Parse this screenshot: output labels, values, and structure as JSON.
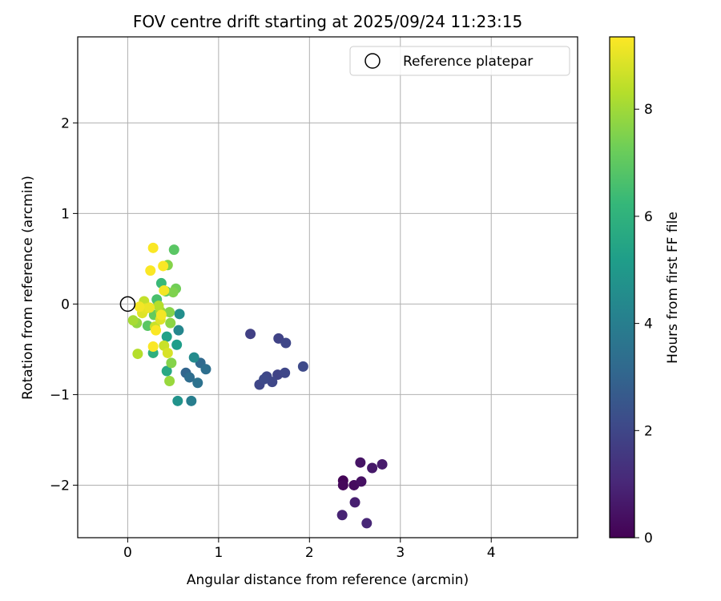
{
  "chart_data": {
    "type": "scatter",
    "title": "FOV centre drift starting at 2025/09/24 11:23:15",
    "xlabel": "Angular distance from reference (arcmin)",
    "ylabel": "Rotation from reference (arcmin)",
    "xlim": [
      -0.55,
      4.95
    ],
    "ylim": [
      -2.58,
      2.95
    ],
    "xticks": [
      "0",
      "1",
      "2",
      "3",
      "4"
    ],
    "yticks": [
      "−2",
      "−1",
      "0",
      "1",
      "2"
    ],
    "xtick_values": [
      0,
      1,
      2,
      3,
      4
    ],
    "ytick_values": [
      -2,
      -1,
      0,
      1,
      2
    ],
    "grid": true,
    "legend": {
      "label": "Reference platepar",
      "location": "top-right"
    },
    "reference_point": {
      "x": 0,
      "y": 0
    },
    "colorbar": {
      "label": "Hours from first FF file",
      "range": [
        0,
        9.35
      ],
      "ticks": [
        "0",
        "2",
        "4",
        "6",
        "8"
      ],
      "tick_values": [
        0,
        2,
        4,
        6,
        8
      ],
      "colormap": [
        "#440154",
        "#482878",
        "#3e4989",
        "#31688e",
        "#26828e",
        "#1f9e89",
        "#35b779",
        "#6ece58",
        "#b5de2b",
        "#fde725"
      ]
    },
    "points": [
      {
        "x": 2.37,
        "y": -1.95,
        "t": 0.1
      },
      {
        "x": 2.37,
        "y": -2.0,
        "t": 0.2
      },
      {
        "x": 2.49,
        "y": -2.0,
        "t": 0.3
      },
      {
        "x": 2.57,
        "y": -1.96,
        "t": 0.4
      },
      {
        "x": 2.56,
        "y": -1.75,
        "t": 0.5
      },
      {
        "x": 2.69,
        "y": -1.81,
        "t": 0.6
      },
      {
        "x": 2.8,
        "y": -1.77,
        "t": 0.7
      },
      {
        "x": 2.5,
        "y": -2.19,
        "t": 0.8
      },
      {
        "x": 2.36,
        "y": -2.33,
        "t": 0.9
      },
      {
        "x": 2.63,
        "y": -2.42,
        "t": 1.0
      },
      {
        "x": 1.35,
        "y": -0.33,
        "t": 1.8
      },
      {
        "x": 1.66,
        "y": -0.38,
        "t": 1.9
      },
      {
        "x": 1.74,
        "y": -0.43,
        "t": 2.0
      },
      {
        "x": 1.93,
        "y": -0.69,
        "t": 2.1
      },
      {
        "x": 1.73,
        "y": -0.76,
        "t": 2.0
      },
      {
        "x": 1.65,
        "y": -0.78,
        "t": 1.9
      },
      {
        "x": 1.53,
        "y": -0.8,
        "t": 2.0
      },
      {
        "x": 1.5,
        "y": -0.83,
        "t": 2.1
      },
      {
        "x": 1.59,
        "y": -0.86,
        "t": 2.0
      },
      {
        "x": 1.45,
        "y": -0.89,
        "t": 2.0
      },
      {
        "x": 0.64,
        "y": -0.76,
        "t": 3.0
      },
      {
        "x": 0.68,
        "y": -0.81,
        "t": 3.3
      },
      {
        "x": 0.77,
        "y": -0.87,
        "t": 3.5
      },
      {
        "x": 0.8,
        "y": -0.65,
        "t": 3.2
      },
      {
        "x": 0.86,
        "y": -0.72,
        "t": 3.4
      },
      {
        "x": 0.73,
        "y": -0.59,
        "t": 4.5
      },
      {
        "x": 0.7,
        "y": -1.07,
        "t": 4.0
      },
      {
        "x": 0.55,
        "y": -1.07,
        "t": 4.8
      },
      {
        "x": 0.56,
        "y": -0.29,
        "t": 4.3
      },
      {
        "x": 0.57,
        "y": -0.11,
        "t": 4.6
      },
      {
        "x": 0.54,
        "y": -0.45,
        "t": 5.2
      },
      {
        "x": 0.43,
        "y": -0.74,
        "t": 5.6
      },
      {
        "x": 0.43,
        "y": -0.36,
        "t": 5.3
      },
      {
        "x": 0.37,
        "y": 0.23,
        "t": 6.3
      },
      {
        "x": 0.28,
        "y": -0.54,
        "t": 5.9
      },
      {
        "x": 0.32,
        "y": 0.05,
        "t": 6.6
      },
      {
        "x": 0.42,
        "y": 0.14,
        "t": 6.9
      },
      {
        "x": 0.51,
        "y": 0.6,
        "t": 6.9
      },
      {
        "x": 0.44,
        "y": 0.43,
        "t": 7.6
      },
      {
        "x": 0.53,
        "y": 0.17,
        "t": 7.3
      },
      {
        "x": 0.5,
        "y": 0.13,
        "t": 7.5
      },
      {
        "x": 0.47,
        "y": -0.21,
        "t": 7.7
      },
      {
        "x": 0.46,
        "y": -0.09,
        "t": 7.6
      },
      {
        "x": 0.48,
        "y": -0.65,
        "t": 7.6
      },
      {
        "x": 0.46,
        "y": -0.85,
        "t": 7.9
      },
      {
        "x": 0.22,
        "y": -0.24,
        "t": 6.9
      },
      {
        "x": 0.29,
        "y": -0.12,
        "t": 7.1
      },
      {
        "x": 0.36,
        "y": -0.08,
        "t": 7.9
      },
      {
        "x": 0.06,
        "y": -0.18,
        "t": 8.1
      },
      {
        "x": 0.1,
        "y": -0.21,
        "t": 7.8
      },
      {
        "x": 0.11,
        "y": -0.55,
        "t": 8.3
      },
      {
        "x": 0.18,
        "y": 0.03,
        "t": 8.5
      },
      {
        "x": 0.3,
        "y": -0.25,
        "t": 8.6
      },
      {
        "x": 0.34,
        "y": -0.02,
        "t": 8.3
      },
      {
        "x": 0.4,
        "y": -0.46,
        "t": 8.6
      },
      {
        "x": 0.44,
        "y": -0.54,
        "t": 8.8
      },
      {
        "x": 0.36,
        "y": -0.17,
        "t": 8.9
      },
      {
        "x": 0.16,
        "y": -0.1,
        "t": 8.9
      },
      {
        "x": 0.2,
        "y": -0.05,
        "t": 9.0
      },
      {
        "x": 0.13,
        "y": -0.03,
        "t": 9.2
      },
      {
        "x": 0.24,
        "y": -0.04,
        "t": 9.1
      },
      {
        "x": 0.28,
        "y": 0.62,
        "t": 9.3
      },
      {
        "x": 0.25,
        "y": 0.37,
        "t": 9.3
      },
      {
        "x": 0.39,
        "y": 0.42,
        "t": 9.3
      },
      {
        "x": 0.4,
        "y": 0.15,
        "t": 9.2
      },
      {
        "x": 0.37,
        "y": -0.12,
        "t": 9.2
      },
      {
        "x": 0.31,
        "y": -0.29,
        "t": 9.3
      },
      {
        "x": 0.28,
        "y": -0.47,
        "t": 9.3
      }
    ]
  }
}
